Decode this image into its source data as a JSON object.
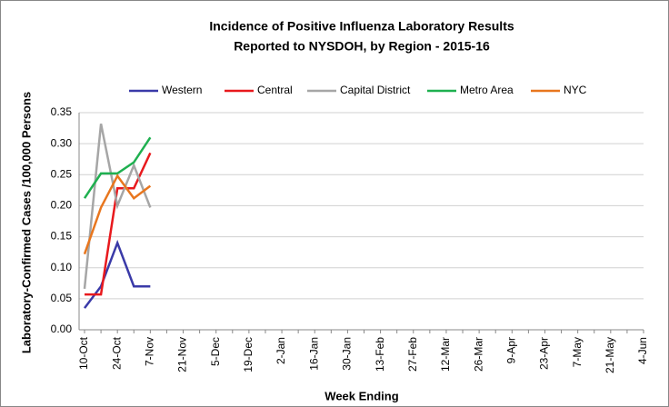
{
  "chart_data": {
    "type": "line",
    "title": "Incidence of Positive Influenza Laboratory Results",
    "subtitle": "Reported to NYSDOH, by Region - 2015-16",
    "y_label": "Laboratory-Confirmed Cases /100,000 Persons",
    "x_label": "Week Ending",
    "categories": [
      "10-Oct",
      null,
      "24-Oct",
      null,
      "7-Nov",
      null,
      "21-Nov",
      null,
      "5-Dec",
      null,
      "19-Dec",
      null,
      "2-Jan",
      null,
      "16-Jan",
      null,
      "30-Jan",
      null,
      "13-Feb",
      null,
      "27-Feb",
      null,
      "12-Mar",
      null,
      "26-Mar",
      null,
      "9-Apr",
      null,
      "23-Apr",
      null,
      "7-May",
      null,
      "21-May",
      null,
      "4-Jun"
    ],
    "series": [
      {
        "name": "Western",
        "color": "#3a3aa8",
        "values": [
          0.035,
          0.07,
          0.14,
          0.07,
          0.07,
          null,
          null,
          null,
          null,
          null,
          null,
          null,
          null,
          null,
          null,
          null,
          null,
          null,
          null,
          null,
          null,
          null,
          null,
          null,
          null,
          null,
          null,
          null,
          null,
          null,
          null,
          null,
          null,
          null,
          null
        ]
      },
      {
        "name": "Central",
        "color": "#e8191d",
        "values": [
          0.057,
          0.057,
          0.228,
          0.228,
          0.285,
          null,
          null,
          null,
          null,
          null,
          null,
          null,
          null,
          null,
          null,
          null,
          null,
          null,
          null,
          null,
          null,
          null,
          null,
          null,
          null,
          null,
          null,
          null,
          null,
          null,
          null,
          null,
          null,
          null,
          null
        ]
      },
      {
        "name": "Capital District",
        "color": "#a6a6a6",
        "values": [
          0.066,
          0.332,
          0.2,
          0.265,
          0.197,
          null,
          null,
          null,
          null,
          null,
          null,
          null,
          null,
          null,
          null,
          null,
          null,
          null,
          null,
          null,
          null,
          null,
          null,
          null,
          null,
          null,
          null,
          null,
          null,
          null,
          null,
          null,
          null,
          null,
          null
        ]
      },
      {
        "name": "Metro Area",
        "color": "#1fb050",
        "values": [
          0.212,
          0.252,
          0.252,
          0.27,
          0.31,
          null,
          null,
          null,
          null,
          null,
          null,
          null,
          null,
          null,
          null,
          null,
          null,
          null,
          null,
          null,
          null,
          null,
          null,
          null,
          null,
          null,
          null,
          null,
          null,
          null,
          null,
          null,
          null,
          null,
          null
        ]
      },
      {
        "name": "NYC",
        "color": "#e8761e",
        "values": [
          0.122,
          0.197,
          0.248,
          0.212,
          0.232,
          null,
          null,
          null,
          null,
          null,
          null,
          null,
          null,
          null,
          null,
          null,
          null,
          null,
          null,
          null,
          null,
          null,
          null,
          null,
          null,
          null,
          null,
          null,
          null,
          null,
          null,
          null,
          null,
          null,
          null
        ]
      }
    ],
    "ylim": [
      0,
      0.35
    ],
    "yticks": [
      {
        "value": 0,
        "label": "0.00"
      },
      {
        "value": 0.05,
        "label": "0.05"
      },
      {
        "value": 0.1,
        "label": "0.10"
      },
      {
        "value": 0.15,
        "label": "0.15"
      },
      {
        "value": 0.2,
        "label": "0.20"
      },
      {
        "value": 0.25,
        "label": "0.25"
      },
      {
        "value": 0.3,
        "label": "0.30"
      },
      {
        "value": 0.35,
        "label": "0.35"
      }
    ],
    "grid": true,
    "legend": "top"
  }
}
